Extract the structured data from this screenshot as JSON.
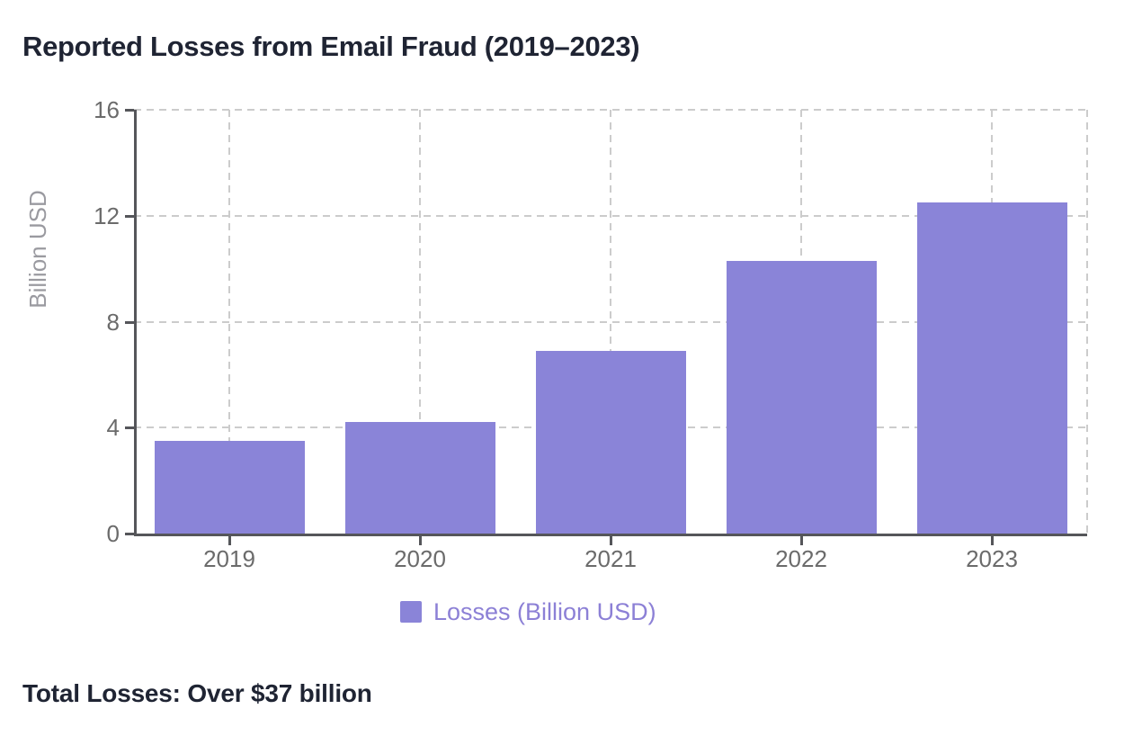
{
  "title": "Reported Losses from Email Fraud (2019–2023)",
  "footer": {
    "total_label": "Total Losses: Over $37 billion"
  },
  "legend": {
    "label": "Losses (Billion USD)"
  },
  "colors": {
    "bar": "#8a84d8",
    "legend_text": "#8c80d6",
    "title_text": "#1f2433",
    "axis_line": "#55565a",
    "tick_label": "#6b6b6b",
    "axis_title": "#9a9aa0",
    "gridline": "#cccccc",
    "background": "#ffffff"
  },
  "chart_data": {
    "type": "bar",
    "categories": [
      "2019",
      "2020",
      "2021",
      "2022",
      "2023"
    ],
    "values": [
      3.5,
      4.2,
      6.9,
      10.3,
      12.5
    ],
    "series": [
      {
        "name": "Losses (Billion USD)",
        "values": [
          3.5,
          4.2,
          6.9,
          10.3,
          12.5
        ]
      }
    ],
    "title": "Reported Losses from Email Fraud (2019–2023)",
    "xlabel": "",
    "ylabel": "Billion USD",
    "ylim": [
      0,
      16
    ],
    "yticks": [
      0,
      4,
      8,
      12,
      16
    ],
    "grid": true,
    "legend_position": "bottom",
    "annotation": "Total Losses: Over $37 billion"
  }
}
